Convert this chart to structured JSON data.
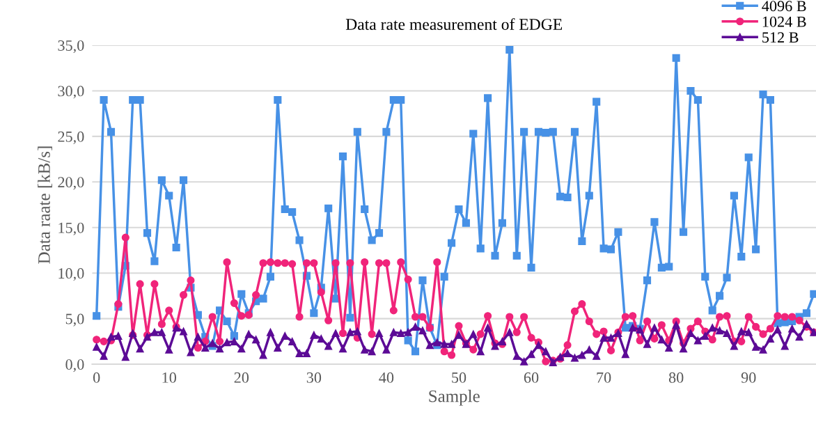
{
  "chart_data": {
    "type": "line",
    "title": "Data rate measurement of EDGE",
    "xlabel": "Sample",
    "ylabel": "Data raate [kB/s]",
    "x": [
      0,
      1,
      2,
      3,
      4,
      5,
      6,
      7,
      8,
      9,
      10,
      11,
      12,
      13,
      14,
      15,
      16,
      17,
      18,
      19,
      20,
      21,
      22,
      23,
      24,
      25,
      26,
      27,
      28,
      29,
      30,
      31,
      32,
      33,
      34,
      35,
      36,
      37,
      38,
      39,
      40,
      41,
      42,
      43,
      44,
      45,
      46,
      47,
      48,
      49,
      50,
      51,
      52,
      53,
      54,
      55,
      56,
      57,
      58,
      59,
      60,
      61,
      62,
      63,
      64,
      65,
      66,
      67,
      68,
      69,
      70,
      71,
      72,
      73,
      74,
      75,
      76,
      77,
      78,
      79,
      80,
      81,
      82,
      83,
      84,
      85,
      86,
      87,
      88,
      89,
      90,
      91,
      92,
      93,
      94,
      95,
      96,
      97,
      98,
      99
    ],
    "series": [
      {
        "name": "4096 B",
        "color": "#4791e6",
        "marker": "square",
        "values": [
          5.3,
          29.0,
          25.5,
          6.3,
          10.8,
          29.0,
          29.0,
          14.4,
          11.3,
          20.2,
          18.5,
          12.8,
          20.2,
          8.4,
          5.4,
          3.0,
          2.0,
          5.9,
          4.7,
          3.1,
          7.7,
          5.6,
          6.9,
          7.2,
          9.6,
          29.0,
          17.0,
          16.7,
          13.6,
          9.7,
          5.6,
          8.4,
          17.1,
          7.2,
          22.8,
          5.1,
          25.5,
          17.0,
          13.6,
          14.4,
          25.5,
          29.0,
          29.0,
          2.6,
          1.4,
          9.2,
          4.0,
          2.1,
          9.6,
          13.3,
          17.0,
          15.5,
          25.3,
          12.7,
          29.2,
          11.9,
          15.5,
          34.5,
          11.9,
          25.5,
          10.6,
          25.5,
          25.4,
          25.5,
          18.4,
          18.3,
          25.5,
          13.5,
          18.5,
          28.8,
          12.7,
          12.6,
          14.5,
          4.0,
          4.2,
          3.9,
          9.2,
          15.6,
          10.6,
          10.7,
          33.6,
          14.5,
          30.0,
          29.0,
          9.6,
          5.9,
          7.5,
          9.5,
          18.5,
          11.8,
          22.7,
          12.6,
          29.6,
          29.0,
          4.5,
          4.6,
          4.7,
          5.2,
          5.6,
          7.7
        ]
      },
      {
        "name": "1024 B",
        "color": "#f0247a",
        "marker": "circle",
        "values": [
          2.7,
          2.5,
          2.6,
          6.6,
          13.9,
          3.2,
          8.8,
          3.2,
          8.8,
          4.4,
          5.9,
          4.1,
          7.6,
          9.2,
          1.8,
          2.5,
          5.2,
          2.5,
          11.2,
          6.7,
          5.3,
          5.4,
          7.6,
          11.1,
          11.2,
          11.1,
          11.1,
          11.0,
          5.2,
          11.1,
          11.1,
          7.9,
          4.8,
          11.1,
          3.4,
          11.1,
          2.9,
          11.2,
          3.3,
          11.1,
          11.1,
          5.9,
          11.2,
          9.3,
          5.2,
          5.2,
          4.0,
          11.2,
          1.4,
          1.0,
          4.2,
          2.3,
          1.6,
          3.3,
          5.3,
          2.3,
          2.2,
          5.2,
          3.5,
          5.2,
          2.9,
          2.4,
          0.3,
          0.4,
          0.6,
          2.1,
          5.8,
          6.6,
          4.7,
          3.3,
          3.6,
          1.5,
          3.5,
          5.2,
          5.3,
          2.6,
          4.7,
          2.8,
          4.3,
          2.6,
          4.7,
          2.3,
          3.9,
          4.7,
          3.6,
          2.7,
          5.2,
          5.3,
          2.5,
          2.5,
          5.2,
          4.1,
          3.3,
          3.9,
          5.3,
          5.2,
          5.2,
          4.8,
          4.1,
          3.5
        ]
      },
      {
        "name": "512 B",
        "color": "#5c0b96",
        "marker": "triangle",
        "values": [
          1.9,
          0.9,
          3.0,
          3.1,
          0.8,
          3.4,
          1.7,
          3.0,
          3.5,
          3.5,
          1.6,
          4.0,
          3.6,
          1.3,
          3.0,
          1.8,
          2.3,
          1.7,
          2.4,
          2.5,
          1.7,
          3.3,
          2.7,
          1.0,
          3.5,
          1.8,
          3.1,
          2.5,
          1.2,
          1.2,
          3.2,
          2.8,
          2.0,
          3.4,
          1.7,
          3.5,
          3.6,
          1.6,
          1.4,
          3.4,
          1.6,
          3.5,
          3.4,
          3.5,
          4.1,
          3.7,
          2.1,
          2.4,
          2.2,
          2.2,
          3.2,
          2.2,
          3.3,
          1.4,
          4.0,
          2.0,
          2.5,
          3.5,
          0.9,
          0.3,
          1.1,
          2.1,
          1.4,
          0.2,
          0.8,
          1.2,
          0.7,
          1.0,
          1.6,
          0.9,
          2.9,
          2.9,
          3.4,
          1.1,
          4.0,
          3.8,
          2.2,
          4.0,
          2.7,
          1.8,
          4.3,
          1.7,
          3.4,
          2.6,
          3.1,
          4.0,
          3.7,
          3.4,
          2.0,
          3.6,
          3.5,
          1.9,
          1.6,
          2.8,
          3.8,
          2.0,
          3.9,
          3.0,
          4.4,
          3.5
        ]
      }
    ],
    "xlim": [
      -0.6,
      99.3
    ],
    "xticks": [
      0,
      10,
      20,
      30,
      40,
      50,
      60,
      70,
      80,
      90
    ],
    "ylim": [
      0,
      35
    ],
    "yticks": [
      {
        "value": 0,
        "label": "0,0"
      },
      {
        "value": 5,
        "label": "5,0"
      },
      {
        "value": 10,
        "label": "10,0"
      },
      {
        "value": 15,
        "label": "15,0"
      },
      {
        "value": 20,
        "label": "20,0"
      },
      {
        "value": 25,
        "label": "25,0"
      },
      {
        "value": 30,
        "label": "30,0"
      },
      {
        "value": 35,
        "label": "35,0"
      }
    ],
    "grid": "y",
    "legend": "top right",
    "line_style": "solid"
  }
}
